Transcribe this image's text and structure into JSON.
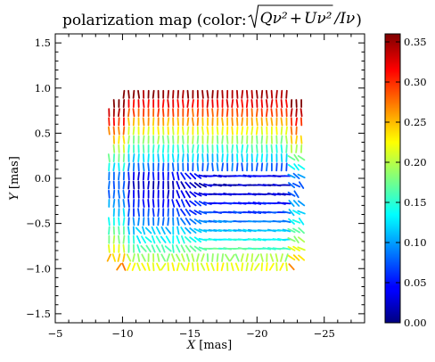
{
  "chart_data": {
    "type": "scatter",
    "plot_kind": "polarization-vector-map",
    "title": "polarization map (color: √(Qν²+Uν²)/Iν)",
    "title_prefix": "polarization map (color: ",
    "title_suffix": ")",
    "title_formula": {
      "numerator_terms": [
        "Qν²",
        "Uν²"
      ],
      "plus": "+",
      "divisor": "/Iν"
    },
    "xlabel": {
      "var": "X",
      "unit": " [mas]"
    },
    "ylabel": {
      "var": "Y",
      "unit": " [mas]"
    },
    "xlim": [
      -5,
      -28
    ],
    "ylim": [
      -1.6,
      1.6
    ],
    "x_ticks": [
      "−5",
      "−10",
      "−15",
      "−20",
      "−25"
    ],
    "x_tick_values": [
      -5,
      -10,
      -15,
      -20,
      -25
    ],
    "y_ticks": [
      "1.5",
      "1.0",
      "0.5",
      "0.0",
      "−0.5",
      "−1.0",
      "−1.5"
    ],
    "y_tick_values": [
      1.5,
      1.0,
      0.5,
      0.0,
      -0.5,
      -1.0,
      -1.5
    ],
    "colorbar": {
      "colormap": "jet",
      "range": [
        0.0,
        0.36
      ],
      "ticks": [
        "0.00",
        "0.05",
        "0.10",
        "0.15",
        "0.20",
        "0.25",
        "0.30",
        "0.35"
      ],
      "tick_values": [
        0.0,
        0.05,
        0.1,
        0.15,
        0.2,
        0.25,
        0.3,
        0.35
      ]
    },
    "vector_field": {
      "x_range": [
        -9.0,
        -23.3
      ],
      "y_range": [
        -0.98,
        0.93
      ],
      "columns": 40,
      "rows": 20,
      "vector_length_mas": 0.08,
      "description_of_pattern": {
        "fractional_polarization_peak_top": 0.35,
        "fractional_polarization_center": 0.02,
        "fractional_polarization_bottom": 0.22,
        "evpa_top_region": "vertical",
        "evpa_lower_right_region": "horizontal"
      }
    },
    "grid": false,
    "legend": "none"
  }
}
